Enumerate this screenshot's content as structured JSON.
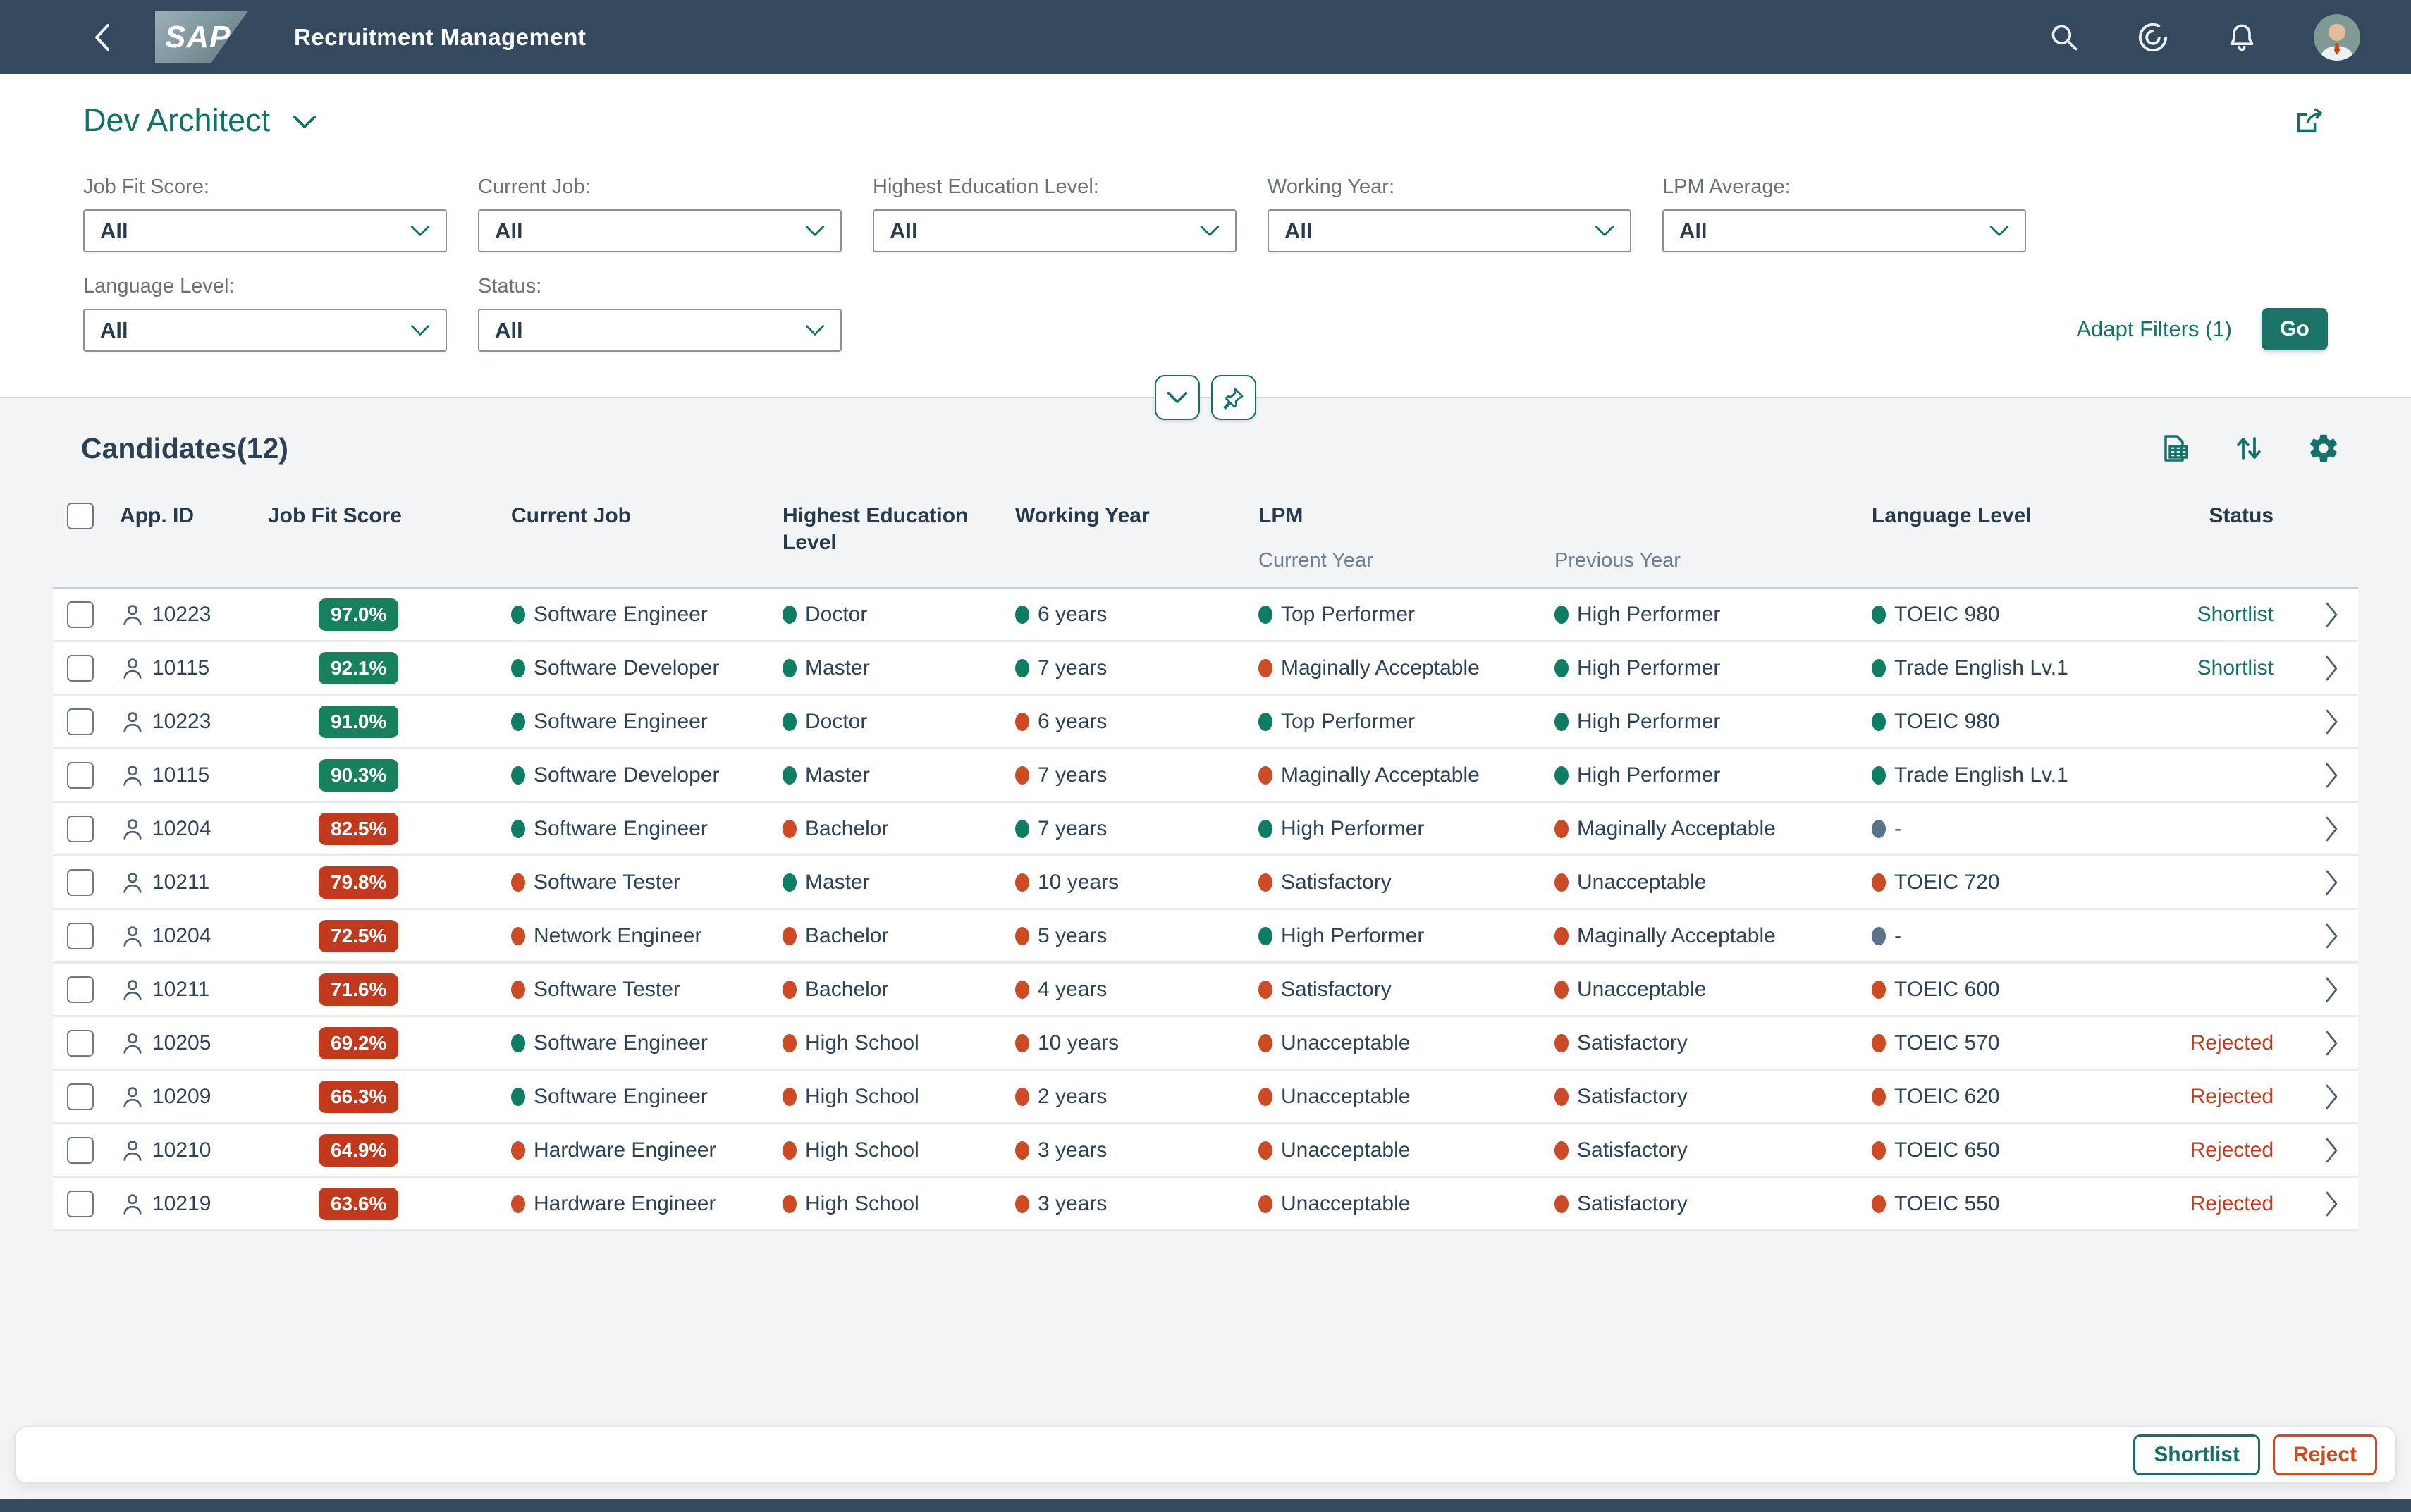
{
  "topbar": {
    "logo_text": "SAP",
    "app_title": "Recruitment Management",
    "icons": [
      "back",
      "search",
      "copilot",
      "notifications",
      "profile-avatar"
    ]
  },
  "page_header": {
    "title": "Dev Architect",
    "actions": [
      "share"
    ]
  },
  "filter_bar": {
    "fields": [
      {
        "label": "Job Fit Score:",
        "value": "All"
      },
      {
        "label": "Current Job:",
        "value": "All"
      },
      {
        "label": "Highest Education Level:",
        "value": "All"
      },
      {
        "label": "Working Year:",
        "value": "All"
      },
      {
        "label": "LPM Average:",
        "value": "All"
      },
      {
        "label": "Language Level:",
        "value": "All"
      },
      {
        "label": "Status:",
        "value": "All"
      }
    ],
    "adapt_filters_label": "Adapt Filters (1)",
    "go_label": "Go",
    "toggles": [
      "collapse-filter-bar",
      "pin-filter-bar"
    ]
  },
  "table": {
    "title": "Candidates(12)",
    "toolbar_icons": [
      "export-to-spreadsheet",
      "sort",
      "settings"
    ],
    "headers": {
      "app_id": "App. ID",
      "job_fit_score": "Job Fit Score",
      "current_job": "Current Job",
      "education": "Highest Education Level",
      "working_year": "Working Year",
      "lpm": "LPM",
      "lpm_current": "Current Year",
      "lpm_previous": "Previous Year",
      "language": "Language Level",
      "status": "Status"
    },
    "rows": [
      {
        "app_id": "10223",
        "score": "97.0%",
        "score_state": "positive",
        "current_job": {
          "text": "Software Engineer",
          "state": "positive"
        },
        "education": {
          "text": "Doctor",
          "state": "positive"
        },
        "working_year": {
          "text": "6 years",
          "state": "positive"
        },
        "lpm_current": {
          "text": "Top Performer",
          "state": "positive"
        },
        "lpm_previous": {
          "text": "High Performer",
          "state": "positive"
        },
        "language": {
          "text": "TOEIC 980",
          "state": "positive"
        },
        "status": {
          "text": "Shortlist",
          "state": "positive"
        }
      },
      {
        "app_id": "10115",
        "score": "92.1%",
        "score_state": "positive",
        "current_job": {
          "text": "Software Developer",
          "state": "positive"
        },
        "education": {
          "text": "Master",
          "state": "positive"
        },
        "working_year": {
          "text": "7 years",
          "state": "positive"
        },
        "lpm_current": {
          "text": "Maginally Acceptable",
          "state": "negative"
        },
        "lpm_previous": {
          "text": "High Performer",
          "state": "positive"
        },
        "language": {
          "text": "Trade English Lv.1",
          "state": "positive"
        },
        "status": {
          "text": "Shortlist",
          "state": "positive"
        }
      },
      {
        "app_id": "10223",
        "score": "91.0%",
        "score_state": "positive",
        "current_job": {
          "text": "Software Engineer",
          "state": "positive"
        },
        "education": {
          "text": "Doctor",
          "state": "positive"
        },
        "working_year": {
          "text": "6 years",
          "state": "negative"
        },
        "lpm_current": {
          "text": "Top Performer",
          "state": "positive"
        },
        "lpm_previous": {
          "text": "High Performer",
          "state": "positive"
        },
        "language": {
          "text": "TOEIC 980",
          "state": "positive"
        },
        "status": {
          "text": "",
          "state": "none"
        }
      },
      {
        "app_id": "10115",
        "score": "90.3%",
        "score_state": "positive",
        "current_job": {
          "text": "Software Developer",
          "state": "positive"
        },
        "education": {
          "text": "Master",
          "state": "positive"
        },
        "working_year": {
          "text": "7 years",
          "state": "negative"
        },
        "lpm_current": {
          "text": "Maginally Acceptable",
          "state": "negative"
        },
        "lpm_previous": {
          "text": "High Performer",
          "state": "positive"
        },
        "language": {
          "text": "Trade English Lv.1",
          "state": "positive"
        },
        "status": {
          "text": "",
          "state": "none"
        }
      },
      {
        "app_id": "10204",
        "score": "82.5%",
        "score_state": "negative",
        "current_job": {
          "text": "Software Engineer",
          "state": "positive"
        },
        "education": {
          "text": "Bachelor",
          "state": "negative"
        },
        "working_year": {
          "text": "7 years",
          "state": "positive"
        },
        "lpm_current": {
          "text": "High Performer",
          "state": "positive"
        },
        "lpm_previous": {
          "text": "Maginally Acceptable",
          "state": "negative"
        },
        "language": {
          "text": "-",
          "state": "neutral"
        },
        "status": {
          "text": "",
          "state": "none"
        }
      },
      {
        "app_id": "10211",
        "score": "79.8%",
        "score_state": "negative",
        "current_job": {
          "text": "Software Tester",
          "state": "negative"
        },
        "education": {
          "text": "Master",
          "state": "positive"
        },
        "working_year": {
          "text": "10 years",
          "state": "negative"
        },
        "lpm_current": {
          "text": "Satisfactory",
          "state": "negative"
        },
        "lpm_previous": {
          "text": "Unacceptable",
          "state": "negative"
        },
        "language": {
          "text": "TOEIC 720",
          "state": "negative"
        },
        "status": {
          "text": "",
          "state": "none"
        }
      },
      {
        "app_id": "10204",
        "score": "72.5%",
        "score_state": "negative",
        "current_job": {
          "text": "Network Engineer",
          "state": "negative"
        },
        "education": {
          "text": "Bachelor",
          "state": "negative"
        },
        "working_year": {
          "text": "5 years",
          "state": "negative"
        },
        "lpm_current": {
          "text": "High Performer",
          "state": "positive"
        },
        "lpm_previous": {
          "text": "Maginally Acceptable",
          "state": "negative"
        },
        "language": {
          "text": "-",
          "state": "neutral"
        },
        "status": {
          "text": "",
          "state": "none"
        }
      },
      {
        "app_id": "10211",
        "score": "71.6%",
        "score_state": "negative",
        "current_job": {
          "text": "Software Tester",
          "state": "negative"
        },
        "education": {
          "text": "Bachelor",
          "state": "negative"
        },
        "working_year": {
          "text": "4 years",
          "state": "negative"
        },
        "lpm_current": {
          "text": "Satisfactory",
          "state": "negative"
        },
        "lpm_previous": {
          "text": "Unacceptable",
          "state": "negative"
        },
        "language": {
          "text": "TOEIC 600",
          "state": "negative"
        },
        "status": {
          "text": "",
          "state": "none"
        }
      },
      {
        "app_id": "10205",
        "score": "69.2%",
        "score_state": "negative",
        "current_job": {
          "text": "Software Engineer",
          "state": "positive"
        },
        "education": {
          "text": "High School",
          "state": "negative"
        },
        "working_year": {
          "text": "10 years",
          "state": "negative"
        },
        "lpm_current": {
          "text": "Unacceptable",
          "state": "negative"
        },
        "lpm_previous": {
          "text": "Satisfactory",
          "state": "negative"
        },
        "language": {
          "text": "TOEIC 570",
          "state": "negative"
        },
        "status": {
          "text": "Rejected",
          "state": "negative"
        }
      },
      {
        "app_id": "10209",
        "score": "66.3%",
        "score_state": "negative",
        "current_job": {
          "text": "Software Engineer",
          "state": "positive"
        },
        "education": {
          "text": "High School",
          "state": "negative"
        },
        "working_year": {
          "text": "2 years",
          "state": "negative"
        },
        "lpm_current": {
          "text": "Unacceptable",
          "state": "negative"
        },
        "lpm_previous": {
          "text": "Satisfactory",
          "state": "negative"
        },
        "language": {
          "text": "TOEIC 620",
          "state": "negative"
        },
        "status": {
          "text": "Rejected",
          "state": "negative"
        }
      },
      {
        "app_id": "10210",
        "score": "64.9%",
        "score_state": "negative",
        "current_job": {
          "text": "Hardware Engineer",
          "state": "negative"
        },
        "education": {
          "text": "High School",
          "state": "negative"
        },
        "working_year": {
          "text": "3 years",
          "state": "negative"
        },
        "lpm_current": {
          "text": "Unacceptable",
          "state": "negative"
        },
        "lpm_previous": {
          "text": "Satisfactory",
          "state": "negative"
        },
        "language": {
          "text": "TOEIC 650",
          "state": "negative"
        },
        "status": {
          "text": "Rejected",
          "state": "negative"
        }
      },
      {
        "app_id": "10219",
        "score": "63.6%",
        "score_state": "negative",
        "current_job": {
          "text": "Hardware Engineer",
          "state": "negative"
        },
        "education": {
          "text": "High School",
          "state": "negative"
        },
        "working_year": {
          "text": "3 years",
          "state": "negative"
        },
        "lpm_current": {
          "text": "Unacceptable",
          "state": "negative"
        },
        "lpm_previous": {
          "text": "Satisfactory",
          "state": "negative"
        },
        "language": {
          "text": "TOEIC 550",
          "state": "negative"
        },
        "status": {
          "text": "Rejected",
          "state": "negative"
        }
      }
    ]
  },
  "footer": {
    "shortlist_label": "Shortlist",
    "reject_label": "Reject"
  },
  "colors": {
    "topbar": "#35495E",
    "accent_teal": "#15706A",
    "positive_green": "#0E7D64",
    "negative_red": "#C8431F",
    "neutral_gray": "#5A7287",
    "page_gray": "#F3F4F5"
  }
}
